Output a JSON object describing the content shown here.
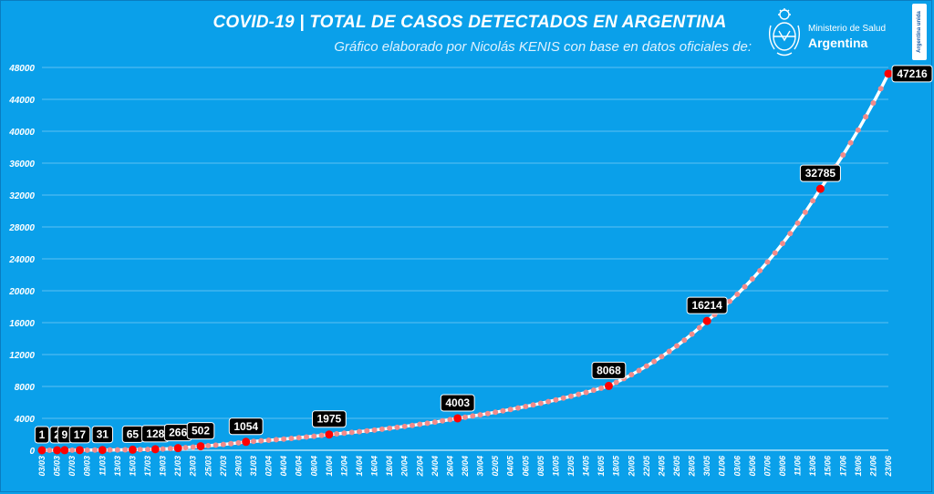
{
  "header": {
    "title": "COVID-19  |  TOTAL DE CASOS DETECTADOS EN ARGENTINA",
    "subtitle": "Gráfico elaborado por Nicolás KENIS con base en datos oficiales de:"
  },
  "logo": {
    "icon": "coat-of-arms-icon",
    "line1": "Ministerio de Salud",
    "line2": "Argentina"
  },
  "badge": {
    "text": "Argentina unida"
  },
  "colors": {
    "background": "#0aa0ea",
    "line": "#ffffff",
    "markers": "#f28b8b",
    "highlight_points": "#ff0000",
    "label_box": "#000000"
  },
  "chart_data": {
    "type": "line",
    "title": "COVID-19  |  TOTAL DE CASOS DETECTADOS EN ARGENTINA",
    "xlabel": "",
    "ylabel": "",
    "ylim": [
      0,
      48000
    ],
    "yticks": [
      0,
      4000,
      8000,
      12000,
      16000,
      20000,
      24000,
      28000,
      32000,
      36000,
      40000,
      44000,
      48000
    ],
    "x_start": "03/03",
    "x_end": "23/06",
    "xtick_labels": [
      "03/03",
      "05/03",
      "07/03",
      "09/03",
      "11/03",
      "13/03",
      "15/03",
      "17/03",
      "19/03",
      "21/03",
      "23/03",
      "25/03",
      "27/03",
      "29/03",
      "31/03",
      "02/04",
      "04/04",
      "06/04",
      "08/04",
      "10/04",
      "12/04",
      "14/04",
      "16/04",
      "18/04",
      "20/04",
      "22/04",
      "24/04",
      "26/04",
      "28/04",
      "30/04",
      "02/05",
      "04/05",
      "06/05",
      "08/05",
      "10/05",
      "12/05",
      "14/05",
      "16/05",
      "18/05",
      "20/05",
      "22/05",
      "24/05",
      "26/05",
      "28/05",
      "30/05",
      "01/06",
      "03/06",
      "05/06",
      "07/06",
      "09/06",
      "11/06",
      "13/06",
      "15/06",
      "17/06",
      "19/06",
      "21/06",
      "23/06"
    ],
    "grid": true,
    "legend": "none",
    "labeled_points": [
      {
        "date": "03/03",
        "value": 1
      },
      {
        "date": "05/03",
        "value": 2
      },
      {
        "date": "06/03",
        "value": 9
      },
      {
        "date": "08/03",
        "value": 17
      },
      {
        "date": "11/03",
        "value": 31
      },
      {
        "date": "15/03",
        "value": 65
      },
      {
        "date": "18/03",
        "value": 128
      },
      {
        "date": "21/03",
        "value": 266
      },
      {
        "date": "24/03",
        "value": 502
      },
      {
        "date": "30/03",
        "value": 1054
      },
      {
        "date": "10/04",
        "value": 1975
      },
      {
        "date": "27/04",
        "value": 4003
      },
      {
        "date": "17/05",
        "value": 8068
      },
      {
        "date": "30/05",
        "value": 16214
      },
      {
        "date": "14/06",
        "value": 32785
      },
      {
        "date": "23/06",
        "value": 47216
      }
    ]
  }
}
